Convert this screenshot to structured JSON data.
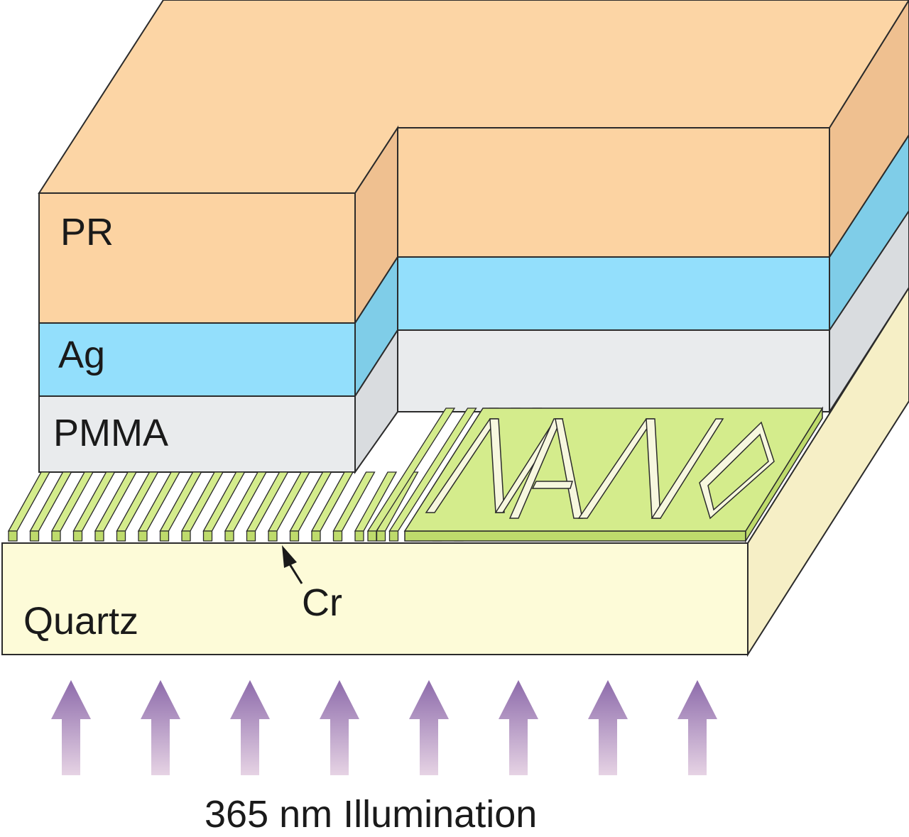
{
  "labels": {
    "pr": "PR",
    "ag": "Ag",
    "pmma": "PMMA",
    "quartz": "Quartz",
    "cr": "Cr",
    "illumination": "365 nm Illumination"
  },
  "pattern_text": "NANO",
  "colors": {
    "pr_front": "#fcd3a2",
    "pr_top": "#fcd5a5",
    "pr_side": "#efc090",
    "ag_front": "#93dffc",
    "ag_side": "#7fcde8",
    "pmma_front": "#e9ebed",
    "pmma_side": "#d9dcdf",
    "quartz_front": "#fdfbd8",
    "quartz_side": "#f6efc6",
    "cr_top": "#d4ec8c",
    "cr_front": "#bedb6c",
    "arrow_top": "#8d6bab",
    "arrow_bottom": "#e6d3e4",
    "outline": "#2b2b2b"
  },
  "arrow_count": 8
}
